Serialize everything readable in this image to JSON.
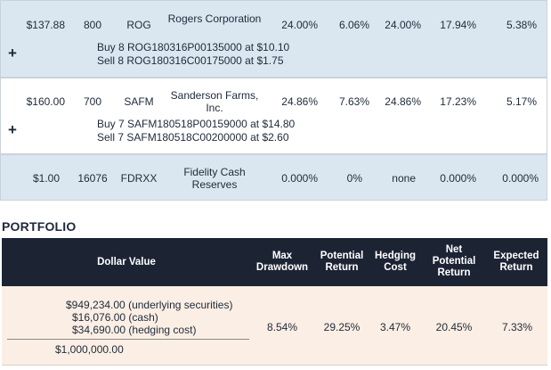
{
  "holdings": [
    {
      "price": "$137.88",
      "shares": "800",
      "symbol": "ROG",
      "name": "Rogers Corporation",
      "c1": "24.00%",
      "c2": "6.06%",
      "c3": "24.00%",
      "c4": "17.94%",
      "c5": "5.38%",
      "expand_icon": "+",
      "trades": [
        "Buy 8 ROG180316P00135000 at $10.10",
        "Sell 8 ROG180316C00175000 at $1.75"
      ]
    },
    {
      "price": "$160.00",
      "shares": "700",
      "symbol": "SAFM",
      "name": "Sanderson Farms, Inc.",
      "c1": "24.86%",
      "c2": "7.63%",
      "c3": "24.86%",
      "c4": "17.23%",
      "c5": "5.17%",
      "expand_icon": "+",
      "trades": [
        "Buy 7 SAFM180518P00159000 at $14.80",
        "Sell 7 SAFM180518C00200000 at $2.60"
      ]
    },
    {
      "price": "$1.00",
      "shares": "16076",
      "symbol": "FDRXX",
      "name": "Fidelity Cash Reserves",
      "c1": "0.000%",
      "c2": "0%",
      "c3": "none",
      "c4": "0.000%",
      "c5": "0.000%"
    }
  ],
  "portfolio": {
    "title": "PORTFOLIO",
    "headers": {
      "dollar_value": "Dollar Value",
      "max_drawdown": "Max Drawdown",
      "potential_return": "Potential Return",
      "hedging_cost": "Hedging Cost",
      "net_potential_return": "Net Potential Return",
      "expected_return": "Expected Return"
    },
    "values": {
      "underlying": "$949,234.00 (underlying securities)",
      "cash": "$16,076.00 (cash)",
      "hedging": "$34,690.00 (hedging cost)",
      "total": "$1,000,000.00",
      "max_drawdown": "8.54%",
      "potential_return": "29.25%",
      "hedging_cost": "3.47%",
      "net_potential_return": "20.45%",
      "expected_return": "7.33%"
    }
  },
  "colors": {
    "row_blue": "#dbe7f0",
    "header_navy": "#1c2434",
    "portfolio_peach": "#fbeee4"
  }
}
